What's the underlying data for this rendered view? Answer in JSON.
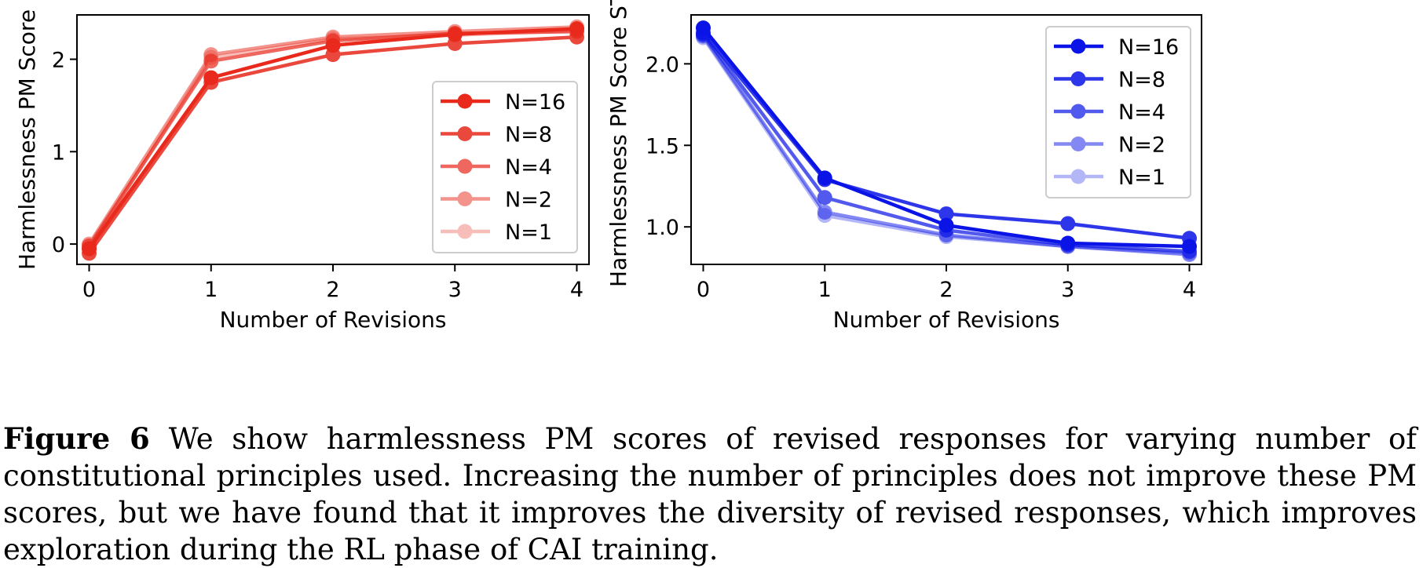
{
  "chart_data": [
    {
      "type": "line",
      "title": "",
      "xlabel": "Number of Revisions",
      "ylabel": "Harmlessness PM Score",
      "color": "#e8291c",
      "x": [
        0,
        1,
        2,
        3,
        4
      ],
      "xlim": [
        -0.1,
        4.1
      ],
      "ylim": [
        -0.22,
        2.48
      ],
      "xticks": [
        "0",
        "1",
        "2",
        "3",
        "4"
      ],
      "yticks": [
        {
          "value": 0,
          "label": "0"
        },
        {
          "value": 1,
          "label": "1"
        },
        {
          "value": 2,
          "label": "2"
        }
      ],
      "legend_position": "center-right",
      "series": [
        {
          "name": "N=16",
          "alpha": 1.0,
          "values": [
            -0.05,
            1.8,
            2.15,
            2.27,
            2.33
          ]
        },
        {
          "name": "N=8",
          "alpha": 0.85,
          "values": [
            -0.1,
            1.75,
            2.05,
            2.17,
            2.24
          ]
        },
        {
          "name": "N=4",
          "alpha": 0.7,
          "values": [
            -0.02,
            1.98,
            2.2,
            2.28,
            2.3
          ]
        },
        {
          "name": "N=2",
          "alpha": 0.5,
          "values": [
            0.0,
            2.05,
            2.24,
            2.3,
            2.35
          ]
        },
        {
          "name": "N=1",
          "alpha": 0.3,
          "values": [
            -0.05,
            2.02,
            2.22,
            2.26,
            2.31
          ]
        }
      ]
    },
    {
      "type": "line",
      "title": "",
      "xlabel": "Number of Revisions",
      "ylabel": "Harmlessness PM Score ST",
      "color": "#0a14e6",
      "x": [
        0,
        1,
        2,
        3,
        4
      ],
      "xlim": [
        -0.1,
        4.1
      ],
      "ylim": [
        0.77,
        2.3
      ],
      "xticks": [
        "0",
        "1",
        "2",
        "3",
        "4"
      ],
      "yticks": [
        {
          "value": 1.0,
          "label": "1.0"
        },
        {
          "value": 1.5,
          "label": "1.5"
        },
        {
          "value": 2.0,
          "label": "2.0"
        }
      ],
      "legend_position": "upper right",
      "series": [
        {
          "name": "N=16",
          "alpha": 1.0,
          "values": [
            2.22,
            1.3,
            1.01,
            0.9,
            0.88
          ]
        },
        {
          "name": "N=8",
          "alpha": 0.85,
          "values": [
            2.19,
            1.29,
            1.08,
            1.02,
            0.93
          ]
        },
        {
          "name": "N=4",
          "alpha": 0.7,
          "values": [
            2.18,
            1.18,
            0.98,
            0.89,
            0.85
          ]
        },
        {
          "name": "N=2",
          "alpha": 0.5,
          "values": [
            2.17,
            1.09,
            0.95,
            0.88,
            0.83
          ]
        },
        {
          "name": "N=1",
          "alpha": 0.3,
          "values": [
            2.16,
            1.07,
            0.94,
            0.88,
            0.84
          ]
        }
      ]
    }
  ],
  "caption": {
    "label": "Figure 6",
    "text": "We show harmlessness PM scores of revised responses for varying number of constitutional principles used. Increasing the number of principles does not improve these PM scores, but we have found that it improves the diversity of revised responses, which improves exploration during the RL phase of CAI training."
  }
}
